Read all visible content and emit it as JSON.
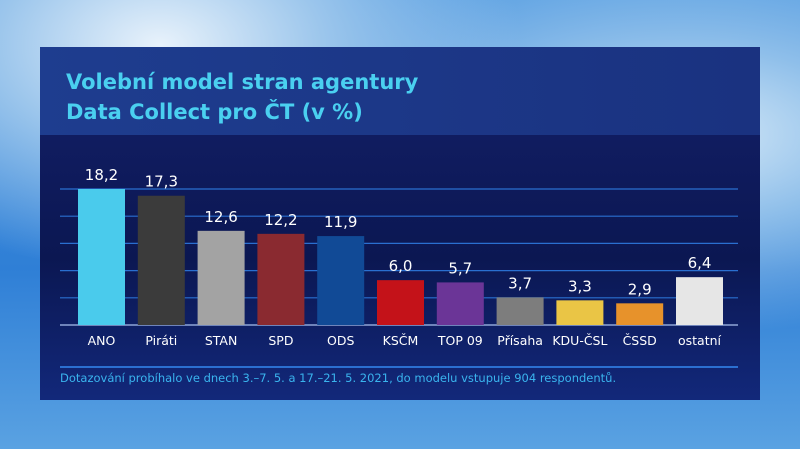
{
  "title_lines": [
    "Volební model stran agentury",
    "Data Collect pro ČT (v %)"
  ],
  "footer": "Dotazování probíhalo ve dnech 3.–7. 5. a 17.–21. 5. 2021, do modelu vstupuje 904 respondentů.",
  "chart_data": {
    "type": "bar",
    "title": "Volební model stran agentury Data Collect pro ČT (v %)",
    "categories": [
      "ANO",
      "Piráti",
      "STAN",
      "SPD",
      "ODS",
      "KSČM",
      "TOP 09",
      "Přísaha",
      "KDU-ČSL",
      "ČSSD",
      "ostatní"
    ],
    "values": [
      18.2,
      17.3,
      12.6,
      12.2,
      11.9,
      6.0,
      5.7,
      3.7,
      3.3,
      2.9,
      6.4
    ],
    "value_labels": [
      "18,2",
      "17,3",
      "12,6",
      "12,2",
      "11,9",
      "6,0",
      "5,7",
      "3,7",
      "3,3",
      "2,9",
      "6,4"
    ],
    "colors": [
      "#4acbec",
      "#3b3b3b",
      "#a3a3a3",
      "#8a2a30",
      "#114a96",
      "#c41219",
      "#6b3597",
      "#7d7d7d",
      "#eac545",
      "#e7922b",
      "#e6e6e6"
    ],
    "ylim": [
      0,
      18.2
    ],
    "grid": true
  }
}
